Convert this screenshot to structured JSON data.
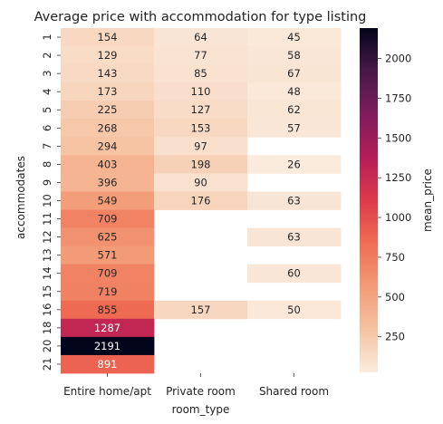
{
  "chart_data": {
    "type": "heatmap",
    "title": "Average price with accommodation for type listing",
    "xlabel": "room_type",
    "ylabel": "accommodates",
    "colorbar_label": "mean_price",
    "x_categories": [
      "Entire home/apt",
      "Private room",
      "Shared room"
    ],
    "y_categories": [
      "1",
      "2",
      "3",
      "4",
      "5",
      "6",
      "7",
      "8",
      "9",
      "10",
      "11",
      "12",
      "13",
      "14",
      "15",
      "16",
      "18",
      "20",
      "21"
    ],
    "values": [
      [
        154,
        64,
        45
      ],
      [
        129,
        77,
        58
      ],
      [
        143,
        85,
        67
      ],
      [
        173,
        110,
        48
      ],
      [
        225,
        127,
        62
      ],
      [
        268,
        153,
        57
      ],
      [
        294,
        97,
        null
      ],
      [
        403,
        198,
        26
      ],
      [
        396,
        90,
        null
      ],
      [
        549,
        176,
        63
      ],
      [
        709,
        null,
        null
      ],
      [
        625,
        null,
        63
      ],
      [
        571,
        null,
        null
      ],
      [
        709,
        null,
        60
      ],
      [
        719,
        null,
        null
      ],
      [
        855,
        157,
        50
      ],
      [
        1287,
        null,
        null
      ],
      [
        2191,
        null,
        null
      ],
      [
        891,
        null,
        null
      ]
    ],
    "colorbar_range": [
      26,
      2191
    ],
    "colorbar_ticks": [
      250,
      500,
      750,
      1000,
      1250,
      1500,
      1750,
      2000
    ],
    "colormap": "rocket_r"
  }
}
